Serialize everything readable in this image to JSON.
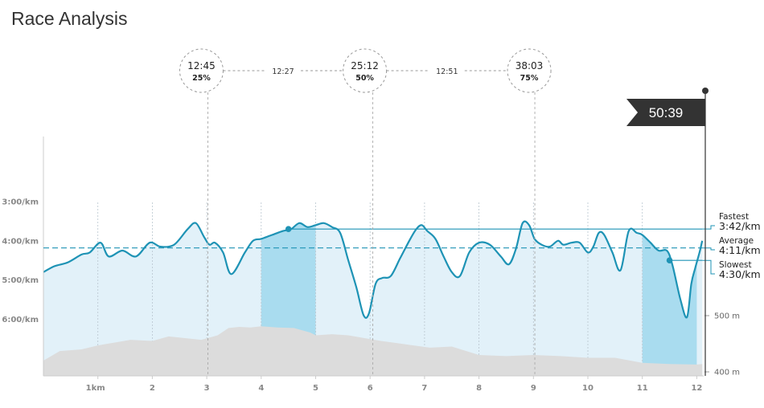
{
  "title": "Race Analysis",
  "finish_time": "50:39",
  "colors": {
    "pace_line": "#1e93b5",
    "pace_fill": "#e2f1f9",
    "highlight_fill": "#a9dcef",
    "elevation_fill": "#dcdcdc",
    "axis": "#cccccc",
    "finish_flag": "#333333"
  },
  "chart_data": {
    "type": "line",
    "x_axis": {
      "range": [
        0,
        12.1
      ],
      "ticks": [
        1,
        2,
        3,
        4,
        5,
        6,
        7,
        8,
        9,
        10,
        11,
        12
      ],
      "tick_labels": [
        "1km",
        "2",
        "3",
        "4",
        "5",
        "6",
        "7",
        "8",
        "9",
        "10",
        "11",
        "12"
      ]
    },
    "y_axis": {
      "unit": "min/km",
      "range": [
        2.0,
        7.0
      ],
      "inverted": true,
      "ticks": [
        3,
        4,
        5,
        6
      ],
      "tick_labels": [
        "3:00/km",
        "4:00/km",
        "5:00/km",
        "6:00/km"
      ]
    },
    "pace_series": {
      "x": [
        0,
        0.2,
        0.45,
        0.7,
        0.85,
        1.05,
        1.2,
        1.45,
        1.7,
        1.95,
        2.15,
        2.4,
        2.65,
        2.8,
        2.95,
        3.05,
        3.15,
        3.3,
        3.45,
        3.7,
        3.85,
        4.0,
        4.2,
        4.4,
        4.55,
        4.7,
        4.85,
        5.0,
        5.15,
        5.3,
        5.45,
        5.6,
        5.75,
        5.88,
        5.98,
        6.1,
        6.22,
        6.38,
        6.55,
        6.72,
        6.85,
        6.95,
        7.05,
        7.2,
        7.35,
        7.5,
        7.65,
        7.82,
        8.0,
        8.2,
        8.4,
        8.55,
        8.68,
        8.8,
        8.92,
        9.02,
        9.15,
        9.3,
        9.45,
        9.55,
        9.7,
        9.85,
        10.0,
        10.1,
        10.2,
        10.3,
        10.45,
        10.6,
        10.75,
        10.9,
        11.0,
        11.15,
        11.3,
        11.45,
        11.55,
        11.7,
        11.82,
        11.9,
        11.97,
        12.05,
        12.1
      ],
      "y": [
        4.8,
        4.65,
        4.55,
        4.35,
        4.3,
        4.05,
        4.4,
        4.25,
        4.4,
        4.05,
        4.15,
        4.1,
        3.7,
        3.55,
        3.9,
        4.1,
        4.05,
        4.3,
        4.85,
        4.3,
        4.0,
        3.95,
        3.85,
        3.75,
        3.7,
        3.55,
        3.65,
        3.6,
        3.55,
        3.65,
        3.8,
        4.5,
        5.2,
        5.9,
        5.85,
        5.1,
        4.95,
        4.9,
        4.45,
        4.0,
        3.7,
        3.6,
        3.75,
        3.95,
        4.4,
        4.8,
        4.9,
        4.3,
        4.05,
        4.1,
        4.4,
        4.6,
        4.2,
        3.55,
        3.6,
        3.95,
        4.1,
        4.15,
        4.0,
        4.1,
        4.05,
        4.05,
        4.3,
        4.15,
        3.8,
        3.85,
        4.3,
        4.75,
        3.75,
        3.8,
        3.85,
        4.05,
        4.25,
        4.25,
        4.6,
        5.5,
        5.95,
        5.1,
        4.7,
        4.3,
        4.0
      ]
    },
    "elevation_series": {
      "unit": "m",
      "x": [
        0,
        0.3,
        0.7,
        1.0,
        1.3,
        1.6,
        2.0,
        2.3,
        2.6,
        2.9,
        3.2,
        3.4,
        3.6,
        3.8,
        4.0,
        4.3,
        4.6,
        4.9,
        5.0,
        5.3,
        5.6,
        5.9,
        6.2,
        6.5,
        6.8,
        7.1,
        7.5,
        8.0,
        8.5,
        9.0,
        9.5,
        10.0,
        10.5,
        11.0,
        11.5,
        12.0,
        12.1
      ],
      "y": [
        420,
        437,
        440,
        447,
        452,
        457,
        455,
        463,
        460,
        457,
        465,
        478,
        480,
        479,
        481,
        479,
        478,
        470,
        465,
        467,
        465,
        460,
        455,
        451,
        447,
        443,
        445,
        430,
        428,
        430,
        428,
        425,
        425,
        416,
        414,
        413,
        414
      ],
      "ticks": [
        400,
        500
      ],
      "tick_labels": [
        "400 m",
        "500 m"
      ],
      "range": [
        385,
        530
      ]
    },
    "highlighted_km": [
      [
        4,
        5
      ],
      [
        11,
        12
      ]
    ],
    "reference_lines": [
      {
        "name": "Fastest",
        "value_label": "3:42/km",
        "pace": 3.7,
        "marker_x": 4.5
      },
      {
        "name": "Average",
        "value_label": "4:11/km",
        "pace": 4.183
      },
      {
        "name": "Slowest",
        "value_label": "4:30/km",
        "pace": 4.5,
        "marker_x": 11.5
      }
    ],
    "splits": [
      {
        "time": "12:45",
        "percent": "25%",
        "x": 3.02
      },
      {
        "time": "25:12",
        "percent": "50%",
        "x": 6.05
      },
      {
        "time": "38:03",
        "percent": "75%",
        "x": 9.07
      }
    ],
    "between_labels": [
      "12:27",
      "12:51"
    ]
  }
}
